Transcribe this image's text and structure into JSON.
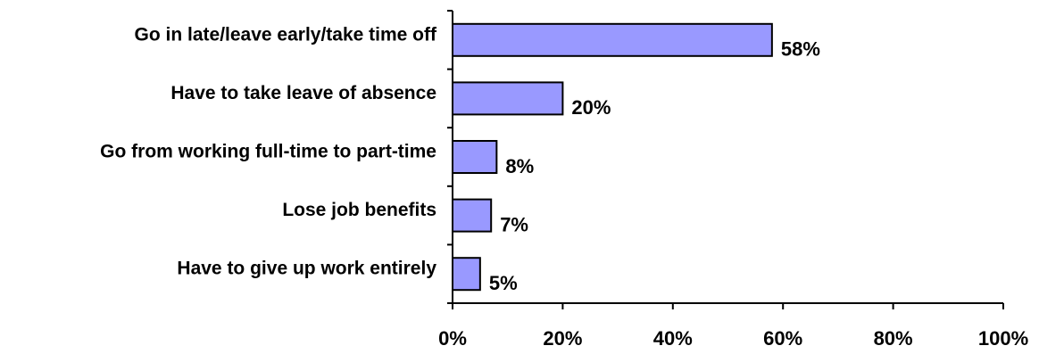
{
  "chart_data": {
    "type": "bar",
    "orientation": "horizontal",
    "categories": [
      "Go in late/leave early/take time off",
      "Have to take leave of absence",
      "Go from working full-time to part-time",
      "Lose job benefits",
      "Have to give up work entirely"
    ],
    "values": [
      58,
      20,
      8,
      7,
      5
    ],
    "value_labels": [
      "58%",
      "20%",
      "8%",
      "7%",
      "5%"
    ],
    "xlim": [
      0,
      100
    ],
    "xticks": [
      0,
      20,
      40,
      60,
      80,
      100
    ],
    "xtick_labels": [
      "0%",
      "20%",
      "40%",
      "60%",
      "80%",
      "100%"
    ],
    "title": "",
    "xlabel": "",
    "ylabel": "",
    "grid": false,
    "legend": "none",
    "bar_color": "#9999ff",
    "bar_edge_color": "#000000"
  }
}
